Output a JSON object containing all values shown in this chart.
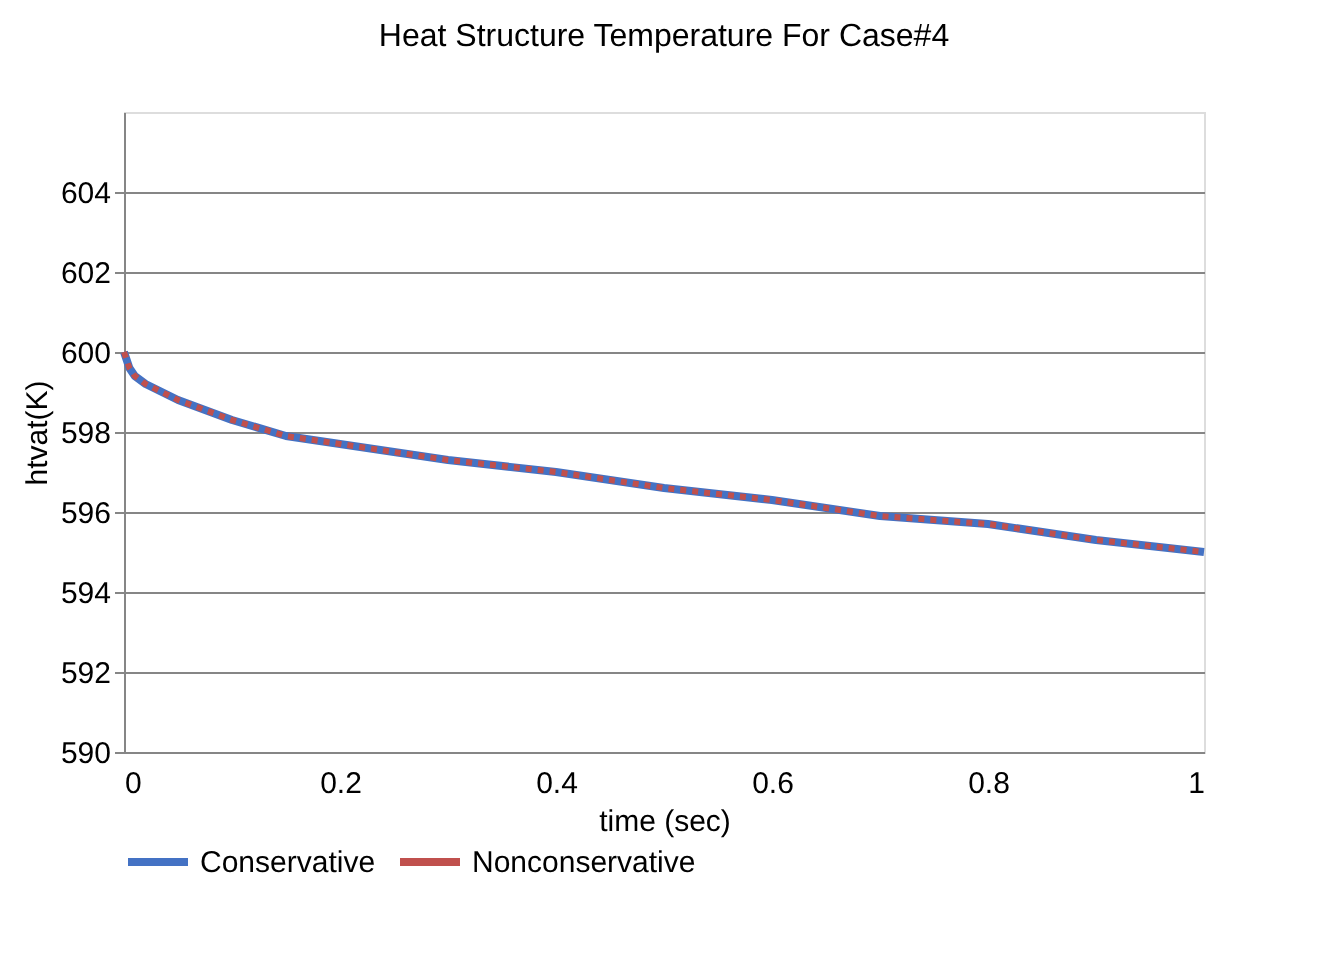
{
  "chart_data": {
    "type": "line",
    "title": "Heat Structure Temperature For Case#4",
    "xlabel": "time (sec)",
    "ylabel": "htvat(K)",
    "x": [
      0,
      0.005,
      0.01,
      0.02,
      0.05,
      0.1,
      0.15,
      0.2,
      0.3,
      0.4,
      0.5,
      0.6,
      0.7,
      0.8,
      0.9,
      1.0
    ],
    "series": [
      {
        "name": "Conservative",
        "color": "#4472c4",
        "line_style": "solid",
        "values": [
          600,
          599.6,
          599.4,
          599.2,
          598.8,
          598.3,
          597.9,
          597.7,
          597.3,
          597.0,
          596.6,
          596.3,
          595.9,
          595.7,
          595.3,
          595.0
        ]
      },
      {
        "name": "Nonconservative",
        "color": "#c0504d",
        "line_style": "dotted",
        "values": [
          600,
          599.6,
          599.4,
          599.2,
          598.8,
          598.3,
          597.9,
          597.7,
          597.3,
          597.0,
          596.6,
          596.3,
          595.9,
          595.7,
          595.3,
          595.0
        ]
      }
    ],
    "xlim": [
      0,
      1
    ],
    "xticks": [
      0,
      0.2,
      0.4,
      0.6,
      0.8,
      1
    ],
    "ylim": [
      590,
      606
    ],
    "yticks": [
      590,
      592,
      594,
      596,
      598,
      600,
      602,
      604
    ],
    "grid": "y",
    "legend": "bottom",
    "marker": "none"
  }
}
